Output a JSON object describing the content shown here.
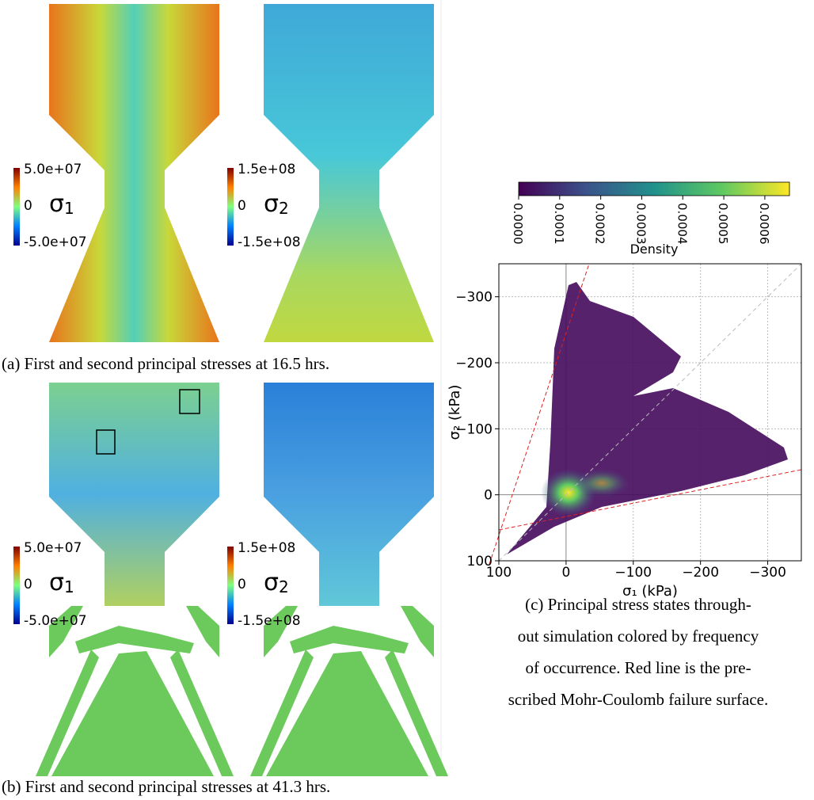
{
  "panel_a": {
    "caption": "(a) First and second principal stresses at 16.5 hrs.",
    "colorbars": [
      {
        "max": "5.0e+07",
        "mid": "0",
        "min": "-5.0e+07",
        "symbol": "σ",
        "index": "1"
      },
      {
        "max": "1.5e+08",
        "mid": "0",
        "min": "-1.5e+08",
        "symbol": "σ",
        "index": "2"
      }
    ]
  },
  "panel_b": {
    "caption": "(b) First and second principal stresses at 41.3 hrs.",
    "colorbars": [
      {
        "max": "5.0e+07",
        "mid": "0",
        "min": "-5.0e+07",
        "symbol": "σ",
        "index": "1"
      },
      {
        "max": "1.5e+08",
        "mid": "0",
        "min": "-1.5e+08",
        "symbol": "σ",
        "index": "2"
      }
    ]
  },
  "panel_c": {
    "caption": [
      "(c) Principal stress states through-",
      "out simulation colored by frequency",
      "of occurrence. Red line is the pre-",
      "scribed Mohr-Coulomb failure surface."
    ]
  },
  "chart_data": {
    "type": "scatter",
    "xlabel": "σ₁ (kPa)",
    "ylabel": "σ₂ (kPa)",
    "xlim": [
      100,
      -350
    ],
    "ylim": [
      100,
      -350
    ],
    "xticks": [
      100,
      0,
      {
        "value": -100,
        "label": "−100"
      },
      {
        "value": -200,
        "label": "−200"
      },
      {
        "value": -300,
        "label": "−300"
      }
    ],
    "yticks": [
      100,
      0,
      {
        "value": -100,
        "label": "−100"
      },
      {
        "value": -200,
        "label": "−200"
      },
      {
        "value": -300,
        "label": "−300"
      }
    ],
    "grid": true,
    "colorbar": {
      "label": "Density",
      "lim": [
        0,
        0.00066
      ],
      "ticks": [
        {
          "value": 0,
          "label": "0.0000"
        },
        {
          "value": 0.0001,
          "label": "0.0001"
        },
        {
          "value": 0.0002,
          "label": "0.0002"
        },
        {
          "value": 0.0003,
          "label": "0.0003"
        },
        {
          "value": 0.0004,
          "label": "0.0004"
        },
        {
          "value": 0.0005,
          "label": "0.0005"
        },
        {
          "value": 0.0006,
          "label": "0.0006"
        }
      ],
      "colors": [
        "#440154",
        "#3b528b",
        "#21918c",
        "#5ec962",
        "#fde725"
      ]
    }
  }
}
